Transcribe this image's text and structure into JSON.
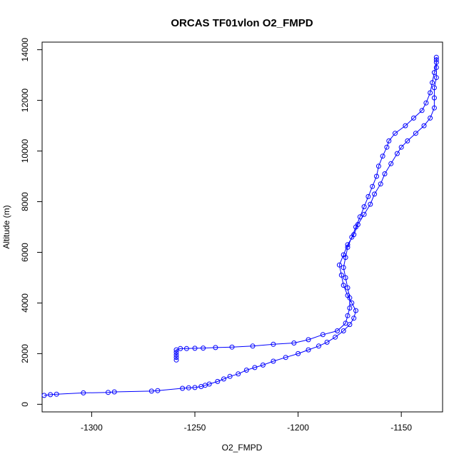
{
  "chart_data": {
    "type": "scatter",
    "title": "ORCAS TF01vlon O2_FMPD",
    "xlabel": "O2_FMPD",
    "ylabel": "Altitude (m)",
    "xlim": [
      -1324,
      -1130
    ],
    "ylim": [
      -300,
      14300
    ],
    "xticks": [
      -1300,
      -1250,
      -1200,
      -1150
    ],
    "yticks": [
      0,
      2000,
      4000,
      6000,
      8000,
      10000,
      12000,
      14000
    ],
    "xtick_labels": [
      "-1300",
      "-1250",
      "-1200",
      "-1150"
    ],
    "ytick_labels": [
      "0",
      "2000",
      "4000",
      "6000",
      "8000",
      "10000",
      "12000",
      "14000"
    ],
    "grid": false,
    "series": [
      {
        "color": "#0000ff",
        "marker": "open-circle",
        "line": true,
        "points": [
          [
            -1323,
            350
          ],
          [
            -1320,
            380
          ],
          [
            -1317,
            400
          ],
          [
            -1304,
            450
          ],
          [
            -1292,
            470
          ],
          [
            -1289,
            490
          ],
          [
            -1271,
            520
          ],
          [
            -1268,
            540
          ],
          [
            -1256,
            630
          ],
          [
            -1253,
            650
          ],
          [
            -1250,
            660
          ],
          [
            -1247,
            700
          ],
          [
            -1245,
            750
          ],
          [
            -1243,
            800
          ],
          [
            -1239,
            900
          ],
          [
            -1236,
            1000
          ],
          [
            -1233,
            1100
          ],
          [
            -1229,
            1200
          ],
          [
            -1225,
            1350
          ],
          [
            -1221,
            1450
          ],
          [
            -1217,
            1550
          ],
          [
            -1212,
            1700
          ],
          [
            -1206,
            1850
          ],
          [
            -1200,
            2000
          ],
          [
            -1195,
            2150
          ],
          [
            -1190,
            2300
          ],
          [
            -1186,
            2450
          ],
          [
            -1182,
            2650
          ],
          [
            -1178,
            2900
          ],
          [
            -1175,
            3150
          ],
          [
            -1173,
            3400
          ],
          [
            -1172,
            3700
          ],
          [
            -1174,
            4000
          ],
          [
            -1176,
            4300
          ],
          [
            -1178,
            4700
          ],
          [
            -1179,
            5100
          ],
          [
            -1180,
            5500
          ],
          [
            -1178,
            5900
          ],
          [
            -1176,
            6300
          ],
          [
            -1173,
            6700
          ],
          [
            -1171,
            7100
          ],
          [
            -1168,
            7500
          ],
          [
            -1165,
            7900
          ],
          [
            -1163,
            8300
          ],
          [
            -1160,
            8700
          ],
          [
            -1158,
            9100
          ],
          [
            -1155,
            9500
          ],
          [
            -1152,
            9900
          ],
          [
            -1150,
            10150
          ],
          [
            -1147,
            10400
          ],
          [
            -1143,
            10700
          ],
          [
            -1139,
            11000
          ],
          [
            -1136,
            11300
          ],
          [
            -1134,
            11700
          ],
          [
            -1134,
            12100
          ],
          [
            -1134,
            12500
          ],
          [
            -1133,
            12900
          ],
          [
            -1133,
            13300
          ],
          [
            -1133,
            13600
          ],
          [
            -1133,
            13700
          ],
          [
            -1133,
            13500
          ],
          [
            -1134,
            13100
          ],
          [
            -1135,
            12700
          ],
          [
            -1136,
            12300
          ],
          [
            -1138,
            11900
          ],
          [
            -1140,
            11600
          ],
          [
            -1144,
            11300
          ],
          [
            -1148,
            11000
          ],
          [
            -1153,
            10700
          ],
          [
            -1156,
            10400
          ],
          [
            -1157,
            10150
          ],
          [
            -1159,
            9800
          ],
          [
            -1161,
            9400
          ],
          [
            -1162,
            9000
          ],
          [
            -1164,
            8600
          ],
          [
            -1166,
            8200
          ],
          [
            -1168,
            7800
          ],
          [
            -1170,
            7400
          ],
          [
            -1172,
            7000
          ],
          [
            -1174,
            6600
          ],
          [
            -1176,
            6200
          ],
          [
            -1177,
            5800
          ],
          [
            -1178,
            5400
          ],
          [
            -1177,
            5000
          ],
          [
            -1176,
            4600
          ],
          [
            -1175,
            4200
          ],
          [
            -1175,
            3800
          ],
          [
            -1176,
            3500
          ],
          [
            -1177,
            3200
          ],
          [
            -1181,
            2900
          ],
          [
            -1188,
            2750
          ],
          [
            -1195,
            2550
          ],
          [
            -1202,
            2420
          ],
          [
            -1212,
            2370
          ],
          [
            -1222,
            2300
          ],
          [
            -1232,
            2260
          ],
          [
            -1240,
            2240
          ],
          [
            -1246,
            2220
          ],
          [
            -1250,
            2210
          ],
          [
            -1254,
            2200
          ],
          [
            -1257,
            2200
          ],
          [
            -1259,
            2150
          ],
          [
            -1259,
            2050
          ],
          [
            -1259,
            1950
          ],
          [
            -1259,
            1850
          ],
          [
            -1259,
            1750
          ]
        ]
      }
    ]
  }
}
